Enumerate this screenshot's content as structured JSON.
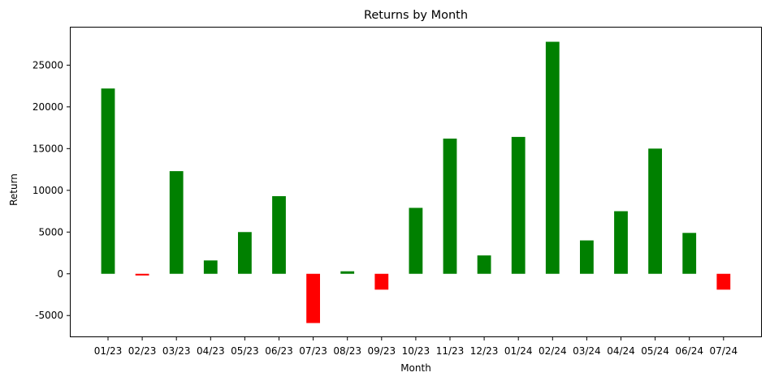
{
  "chart_data": {
    "type": "bar",
    "title": "Returns by Month",
    "xlabel": "Month",
    "ylabel": "Return",
    "categories": [
      "01/23",
      "02/23",
      "03/23",
      "04/23",
      "05/23",
      "06/23",
      "07/23",
      "08/23",
      "09/23",
      "10/23",
      "11/23",
      "12/23",
      "01/24",
      "02/24",
      "03/24",
      "04/24",
      "05/24",
      "06/24",
      "07/24"
    ],
    "values": [
      22200,
      -200,
      12300,
      1600,
      5000,
      9300,
      -5900,
      300,
      -1900,
      7900,
      16200,
      2200,
      16400,
      27800,
      4000,
      7500,
      15000,
      4900,
      -1900
    ],
    "ylim": [
      -7600,
      29600
    ],
    "yticks": [
      -5000,
      0,
      5000,
      10000,
      15000,
      20000,
      25000
    ],
    "grid": false,
    "colors": {
      "positive": "#008000",
      "negative": "#ff0000"
    }
  }
}
